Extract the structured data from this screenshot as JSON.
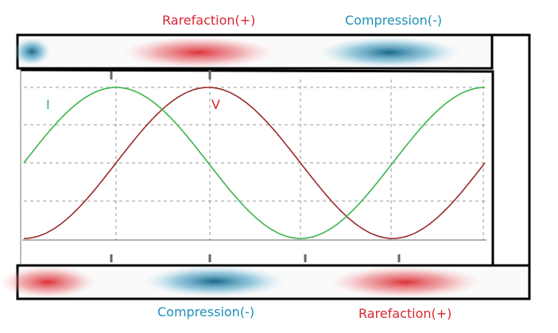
{
  "labels": {
    "top_left": "Rarefaction(+)",
    "top_right": "Compression(-)",
    "bottom_left": "Compression(-)",
    "bottom_right": "Rarefaction(+)",
    "current": "I",
    "voltage": "V"
  },
  "colors": {
    "rarefaction": "#d9262f",
    "compression": "#1f8fb8",
    "current": "#3cb44b",
    "voltage": "#9b2a2a",
    "frame": "#000000",
    "grid": "#9a9a9a"
  }
}
